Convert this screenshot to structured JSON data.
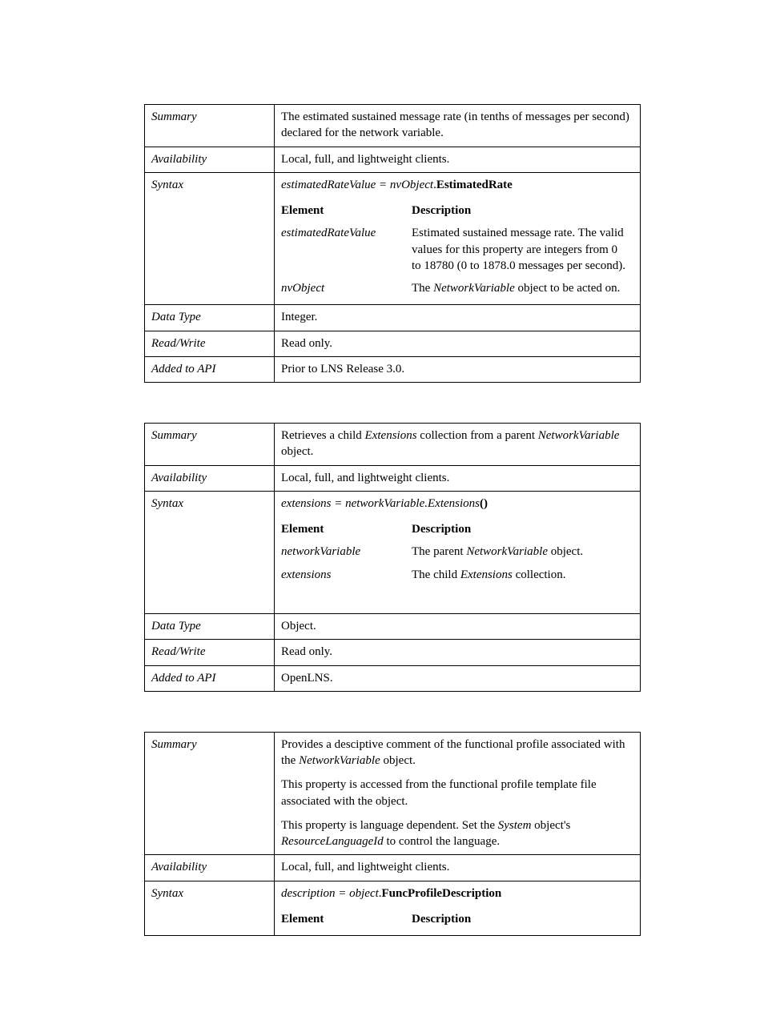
{
  "table1": {
    "summary_label": "Summary",
    "summary_value": "The estimated sustained message rate (in tenths of messages per second) declared for the network variable.",
    "availability_label": "Availability",
    "availability_value": "Local, full, and lightweight clients.",
    "syntax_label": "Syntax",
    "syntax_lhs": "estimatedRateValue = nvObject",
    "syntax_dot": ".",
    "syntax_rhs": "EstimatedRate",
    "element_header": "Element",
    "description_header": "Description",
    "row1_element": "estimatedRateValue",
    "row1_desc": "Estimated sustained message rate. The valid values for this property are integers from 0 to 18780 (0 to 1878.0 messages per second).",
    "row2_element": "nvObject",
    "row2_desc_pre": "The ",
    "row2_desc_italic": "NetworkVariable",
    "row2_desc_post": " object to be acted on.",
    "datatype_label": "Data Type",
    "datatype_value": "Integer.",
    "readwrite_label": "Read/Write",
    "readwrite_value": "Read only.",
    "added_label": "Added to API",
    "added_value": "Prior to LNS Release 3.0."
  },
  "table2": {
    "summary_label": "Summary",
    "summary_pre": "Retrieves a child ",
    "summary_italic1": "Extensions",
    "summary_mid": " collection from a parent ",
    "summary_italic2": "NetworkVariable",
    "summary_post": " object.",
    "availability_label": "Availability",
    "availability_value": "Local, full, and lightweight clients.",
    "syntax_label": "Syntax",
    "syntax_lhs": "extensions = networkVariable.Extensions",
    "syntax_rhs": "()",
    "element_header": "Element",
    "description_header": "Description",
    "row1_element": "networkVariable",
    "row1_desc_pre": "The parent ",
    "row1_desc_italic": "NetworkVariable",
    "row1_desc_post": " object.",
    "row2_element": "extensions",
    "row2_desc_pre": "The child ",
    "row2_desc_italic": "Extensions",
    "row2_desc_post": " collection.",
    "datatype_label": "Data Type",
    "datatype_value": "Object.",
    "readwrite_label": "Read/Write",
    "readwrite_value": "Read only.",
    "added_label": "Added to API",
    "added_value": "OpenLNS."
  },
  "table3": {
    "summary_label": "Summary",
    "p1_pre": "Provides a desciptive comment of the functional profile associated with the ",
    "p1_italic": "NetworkVariable",
    "p1_post": " object.",
    "p2": "This property is accessed from the functional profile template file associated with the object.",
    "p3_pre": "This property is language dependent.  Set the ",
    "p3_italic1": "System",
    "p3_mid": " object's ",
    "p3_italic2": "ResourceLanguageId",
    "p3_post": " to control the language.",
    "availability_label": "Availability",
    "availability_value": "Local, full, and lightweight clients.",
    "syntax_label": "Syntax",
    "syntax_lhs": "description = object",
    "syntax_dot": ".",
    "syntax_rhs": "FuncProfileDescription",
    "element_header": "Element",
    "description_header": "Description"
  }
}
